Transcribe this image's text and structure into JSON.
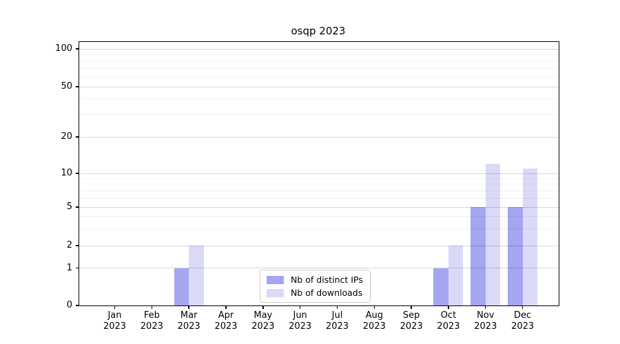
{
  "title": "osqp 2023",
  "legend": {
    "items": [
      {
        "label": "Nb of distinct IPs",
        "color": "#a5a5f2"
      },
      {
        "label": "Nb of downloads",
        "color": "#dadaf8"
      }
    ]
  },
  "chart_data": {
    "type": "bar",
    "title": "osqp 2023",
    "categories": [
      "Jan 2023",
      "Feb 2023",
      "Mar 2023",
      "Apr 2023",
      "May 2023",
      "Jun 2023",
      "Jul 2023",
      "Aug 2023",
      "Sep 2023",
      "Oct 2023",
      "Nov 2023",
      "Dec 2023"
    ],
    "x_tick_months": [
      "Jan",
      "Feb",
      "Mar",
      "Apr",
      "May",
      "Jun",
      "Jul",
      "Aug",
      "Sep",
      "Oct",
      "Nov",
      "Dec"
    ],
    "x_tick_year": "2023",
    "series": [
      {
        "name": "Nb of distinct IPs",
        "color": "#a5a5f2",
        "values": [
          0,
          0,
          1,
          0,
          0,
          0,
          0,
          0,
          0,
          1,
          5,
          5
        ]
      },
      {
        "name": "Nb of downloads",
        "color": "#dadaf8",
        "values": [
          0,
          0,
          2,
          0,
          0,
          0,
          0,
          0,
          0,
          2,
          12,
          11
        ]
      }
    ],
    "y_axis": {
      "scale": "symlog",
      "major_ticks": [
        0,
        1,
        2,
        5,
        10,
        20,
        50,
        100
      ],
      "major_tick_labels": [
        "0",
        "1",
        "2",
        "5",
        "10",
        "20",
        "50",
        "100"
      ],
      "minor_ticks": [
        3,
        4,
        6,
        7,
        8,
        9,
        30,
        40,
        60,
        70,
        80,
        90
      ],
      "range": [
        0,
        115
      ]
    },
    "grid": true,
    "legend_position": "lower center",
    "colors": {
      "distinct_ips": "#a5a5f2",
      "downloads": "#dadaf8",
      "grid_major": "#d6d6d6",
      "grid_minor": "#efefef",
      "spine": "#000000"
    }
  }
}
